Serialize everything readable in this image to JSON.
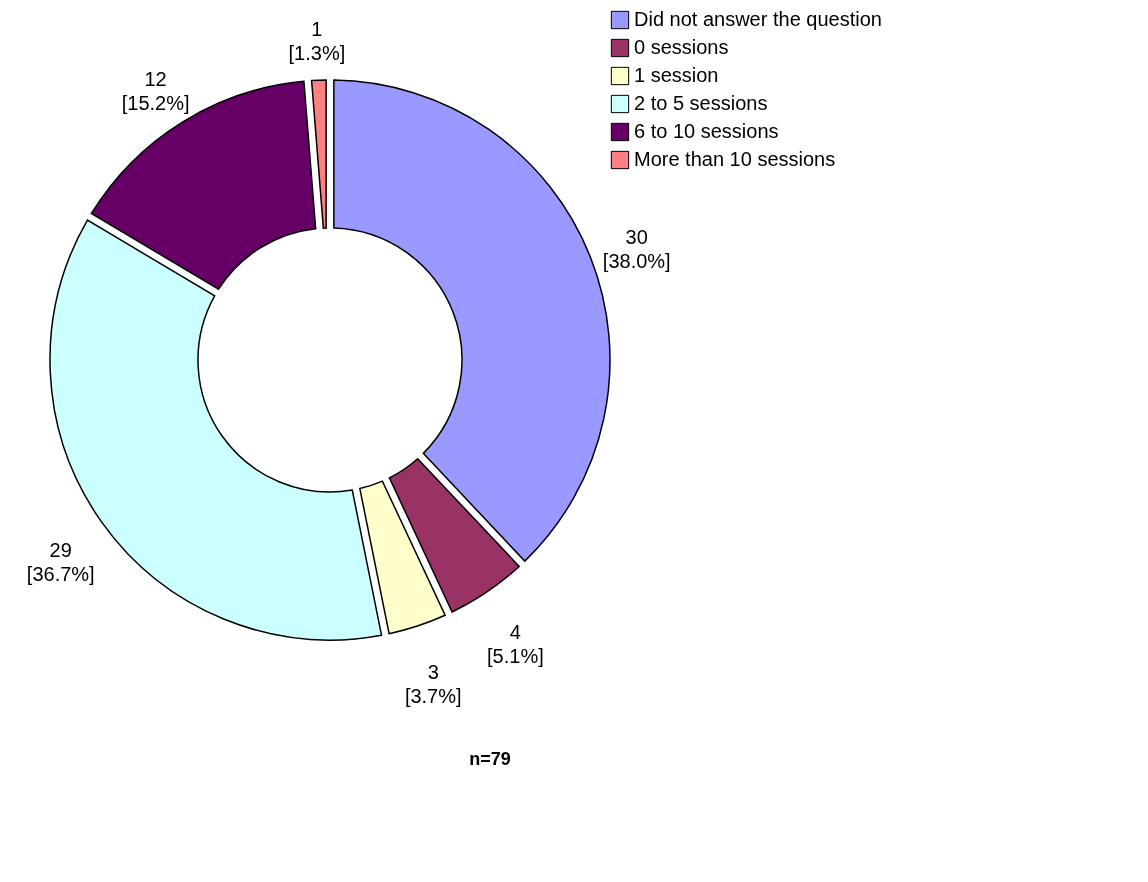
{
  "chart_data": {
    "type": "donut",
    "categories": [
      "Did not answer the question",
      "0 sessions",
      "1 session",
      "2 to 5 sessions",
      "6 to 10 sessions",
      "More than 10 sessions"
    ],
    "values": [
      30,
      4,
      3,
      29,
      12,
      1
    ],
    "colors": [
      "#9999ff",
      "#993366",
      "#ffffcc",
      "#ccffff",
      "#660066",
      "#ff8080"
    ],
    "value_labels": [
      "30\n[38.0%]",
      "4\n[5.1%]",
      "3\n[3.7%]",
      "29\n[36.7%]",
      "12\n[15.2%]",
      "1\n[1.3%]"
    ],
    "legend": "right",
    "annotations": [
      "n=79"
    ]
  }
}
